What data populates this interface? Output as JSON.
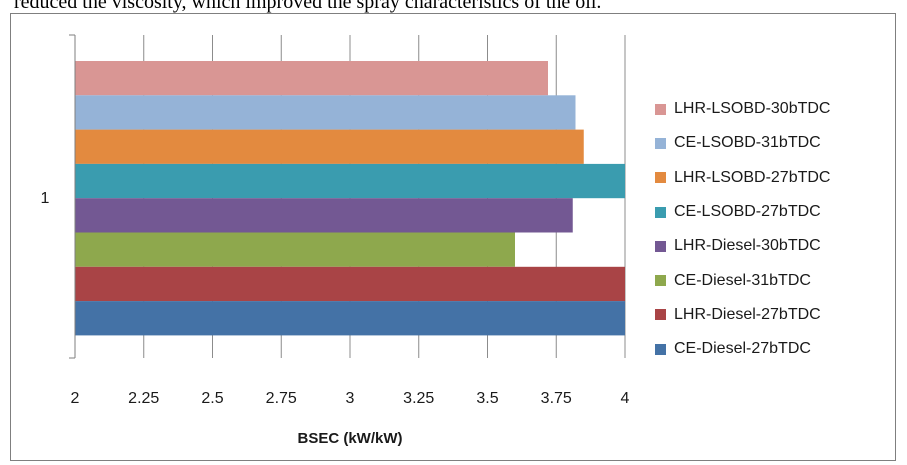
{
  "caption": "reduced the viscosity, which improved the spray characteristics of the oil.",
  "chart_data": {
    "type": "bar",
    "orientation": "horizontal",
    "categories": [
      "1"
    ],
    "xlabel": "BSEC (kW/kW)",
    "ylabel": "",
    "xlim": [
      2,
      4
    ],
    "x_ticks": [
      "2",
      "2.25",
      "2.5",
      "2.75",
      "3",
      "3.25",
      "3.5",
      "3.75",
      "4"
    ],
    "grid": "vertical",
    "legend_position": "right",
    "series": [
      {
        "name": "LHR-LSOBD-30bTDC",
        "values": [
          3.72
        ],
        "color": "#d99694"
      },
      {
        "name": "CE-LSOBD-31bTDC",
        "values": [
          3.82
        ],
        "color": "#95b3d7"
      },
      {
        "name": "LHR-LSOBD-27bTDC",
        "values": [
          3.85
        ],
        "color": "#e38a3f"
      },
      {
        "name": "CE-LSOBD-27bTDC",
        "values": [
          4.0
        ],
        "color": "#3a9caf"
      },
      {
        "name": "LHR-Diesel-30bTDC",
        "values": [
          3.81
        ],
        "color": "#735893"
      },
      {
        "name": "CE-Diesel-31bTDC",
        "values": [
          3.6
        ],
        "color": "#8ea84d"
      },
      {
        "name": "LHR-Diesel-27bTDC",
        "values": [
          4.0
        ],
        "color": "#a94446"
      },
      {
        "name": "CE-Diesel-27bTDC",
        "values": [
          4.0
        ],
        "color": "#4472a6"
      }
    ]
  }
}
